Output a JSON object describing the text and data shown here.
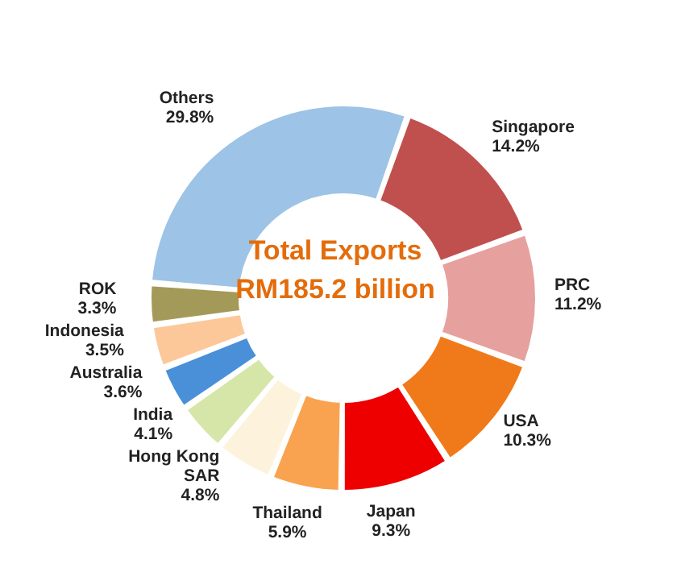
{
  "chart_data": {
    "type": "donut",
    "annotations": [
      "Total Exports RM185.2 billion"
    ],
    "categories": [
      "Singapore",
      "PRC",
      "USA",
      "Japan",
      "Thailand",
      "Hong Kong SAR",
      "India",
      "Australia",
      "Indonesia",
      "ROK",
      "Others"
    ],
    "values": [
      14.2,
      11.2,
      10.3,
      9.3,
      5.9,
      4.8,
      4.1,
      3.6,
      3.5,
      3.3,
      29.8
    ],
    "value_labels": [
      "14.2%",
      "11.2%",
      "10.3%",
      "9.3%",
      "5.9%",
      "4.8%",
      "4.1%",
      "3.6%",
      "3.5%",
      "3.3%",
      "29.8%"
    ],
    "colors": [
      "#c0504d",
      "#e6a09e",
      "#f07a1a",
      "#ee0000",
      "#f9a350",
      "#fdf3dc",
      "#d6e6a8",
      "#4a90d9",
      "#fcc89a",
      "#a39a5a",
      "#9dc3e6"
    ]
  }
}
